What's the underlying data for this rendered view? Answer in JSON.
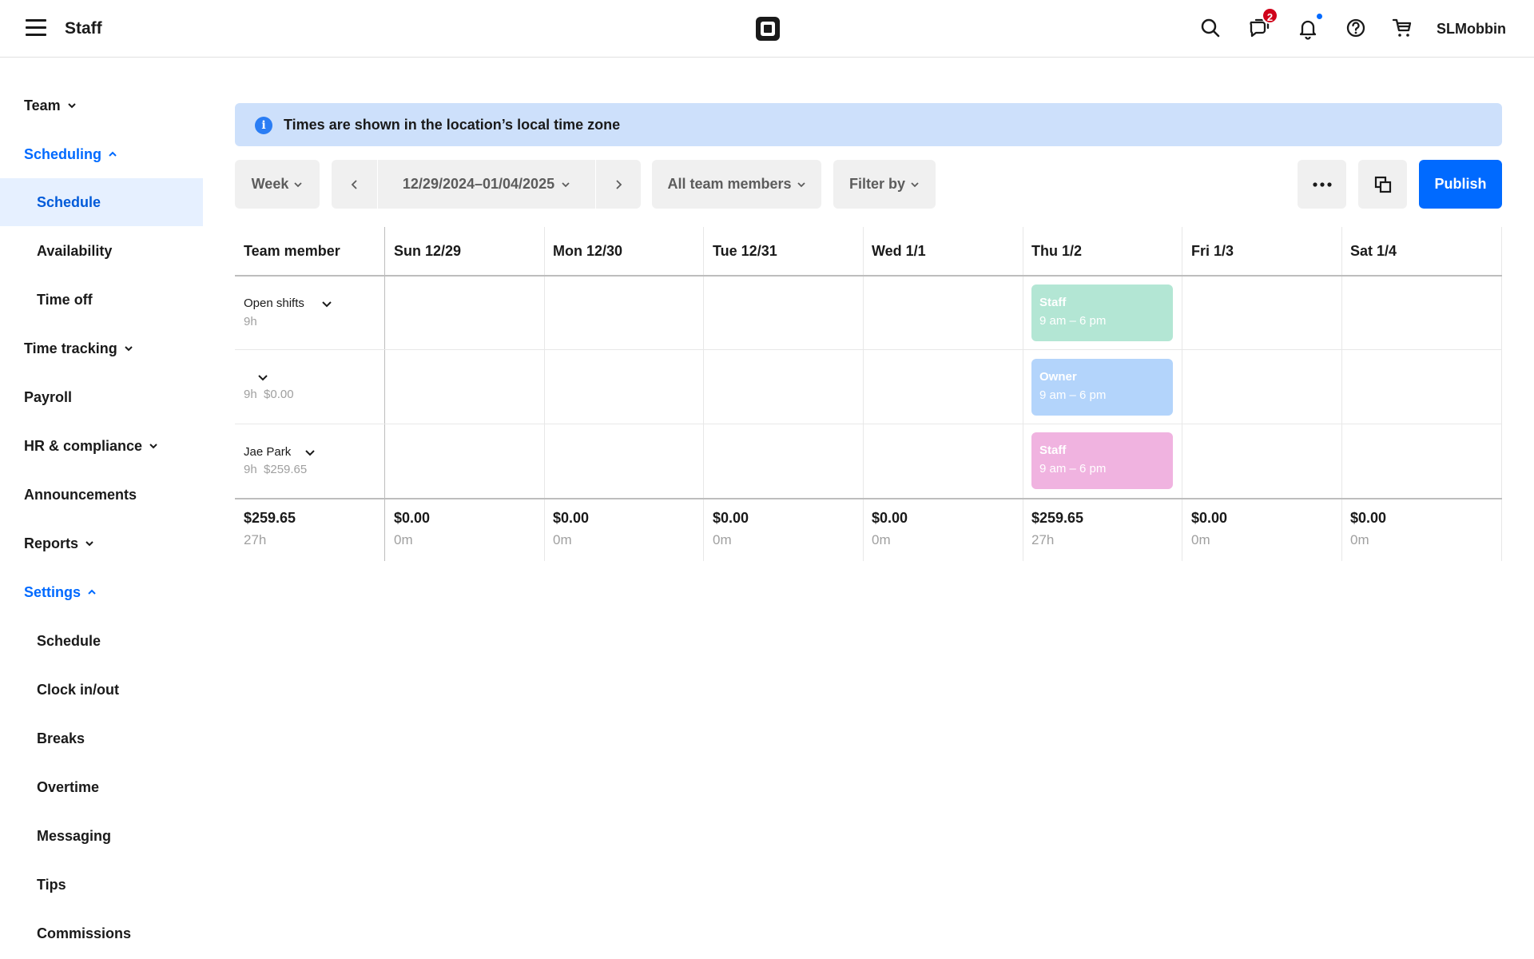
{
  "topbar": {
    "title": "Staff",
    "messages_badge": "2",
    "username": "SLMobbin",
    "icons": [
      "menu-icon",
      "square-logo-icon",
      "search-icon",
      "messages-icon",
      "bell-icon",
      "help-icon",
      "cart-icon"
    ]
  },
  "sidebar": {
    "team": "Team",
    "scheduling": "Scheduling",
    "schedule": "Schedule",
    "availability": "Availability",
    "time_off": "Time off",
    "time_tracking": "Time tracking",
    "payroll": "Payroll",
    "hr": "HR & compliance",
    "announcements": "Announcements",
    "reports": "Reports",
    "settings": "Settings",
    "settings_items": {
      "schedule": "Schedule",
      "clock": "Clock in/out",
      "breaks": "Breaks",
      "overtime": "Overtime",
      "messaging": "Messaging",
      "tips": "Tips",
      "commissions": "Commissions"
    }
  },
  "banner": {
    "text": "Times are shown in the location’s local time zone"
  },
  "toolbar": {
    "view": "Week",
    "date_range": "12/29/2024–01/04/2025",
    "members": "All team members",
    "filter": "Filter by",
    "publish": "Publish"
  },
  "table": {
    "header": [
      "Team member",
      "Sun 12/29",
      "Mon 12/30",
      "Tue 12/31",
      "Wed 1/1",
      "Thu 1/2",
      "Fri 1/3",
      "Sat 1/4"
    ],
    "rows": [
      {
        "name": "Open shifts",
        "sub": "9h"
      },
      {
        "name": "",
        "sub": "9h  $0.00"
      },
      {
        "name": "Jae Park",
        "sub": "9h  $259.65"
      }
    ],
    "shifts": [
      {
        "role": "Staff",
        "time": "9 am – 6 pm",
        "color": "#b3e6d4"
      },
      {
        "role": "Owner",
        "time": "9 am – 6 pm",
        "color": "#b3d4fb"
      },
      {
        "role": "Staff",
        "time": "9 am – 6 pm",
        "color": "#f0b3e0"
      }
    ],
    "totals": [
      {
        "amount": "$259.65",
        "hours": "27h"
      },
      {
        "amount": "$0.00",
        "hours": "0m"
      },
      {
        "amount": "$0.00",
        "hours": "0m"
      },
      {
        "amount": "$0.00",
        "hours": "0m"
      },
      {
        "amount": "$0.00",
        "hours": "0m"
      },
      {
        "amount": "$259.65",
        "hours": "27h"
      },
      {
        "amount": "$0.00",
        "hours": "0m"
      },
      {
        "amount": "$0.00",
        "hours": "0m"
      }
    ]
  },
  "colors": {
    "accent": "#006aff",
    "active_bg": "#e6f0ff",
    "banner_bg": "#cde0fb"
  }
}
